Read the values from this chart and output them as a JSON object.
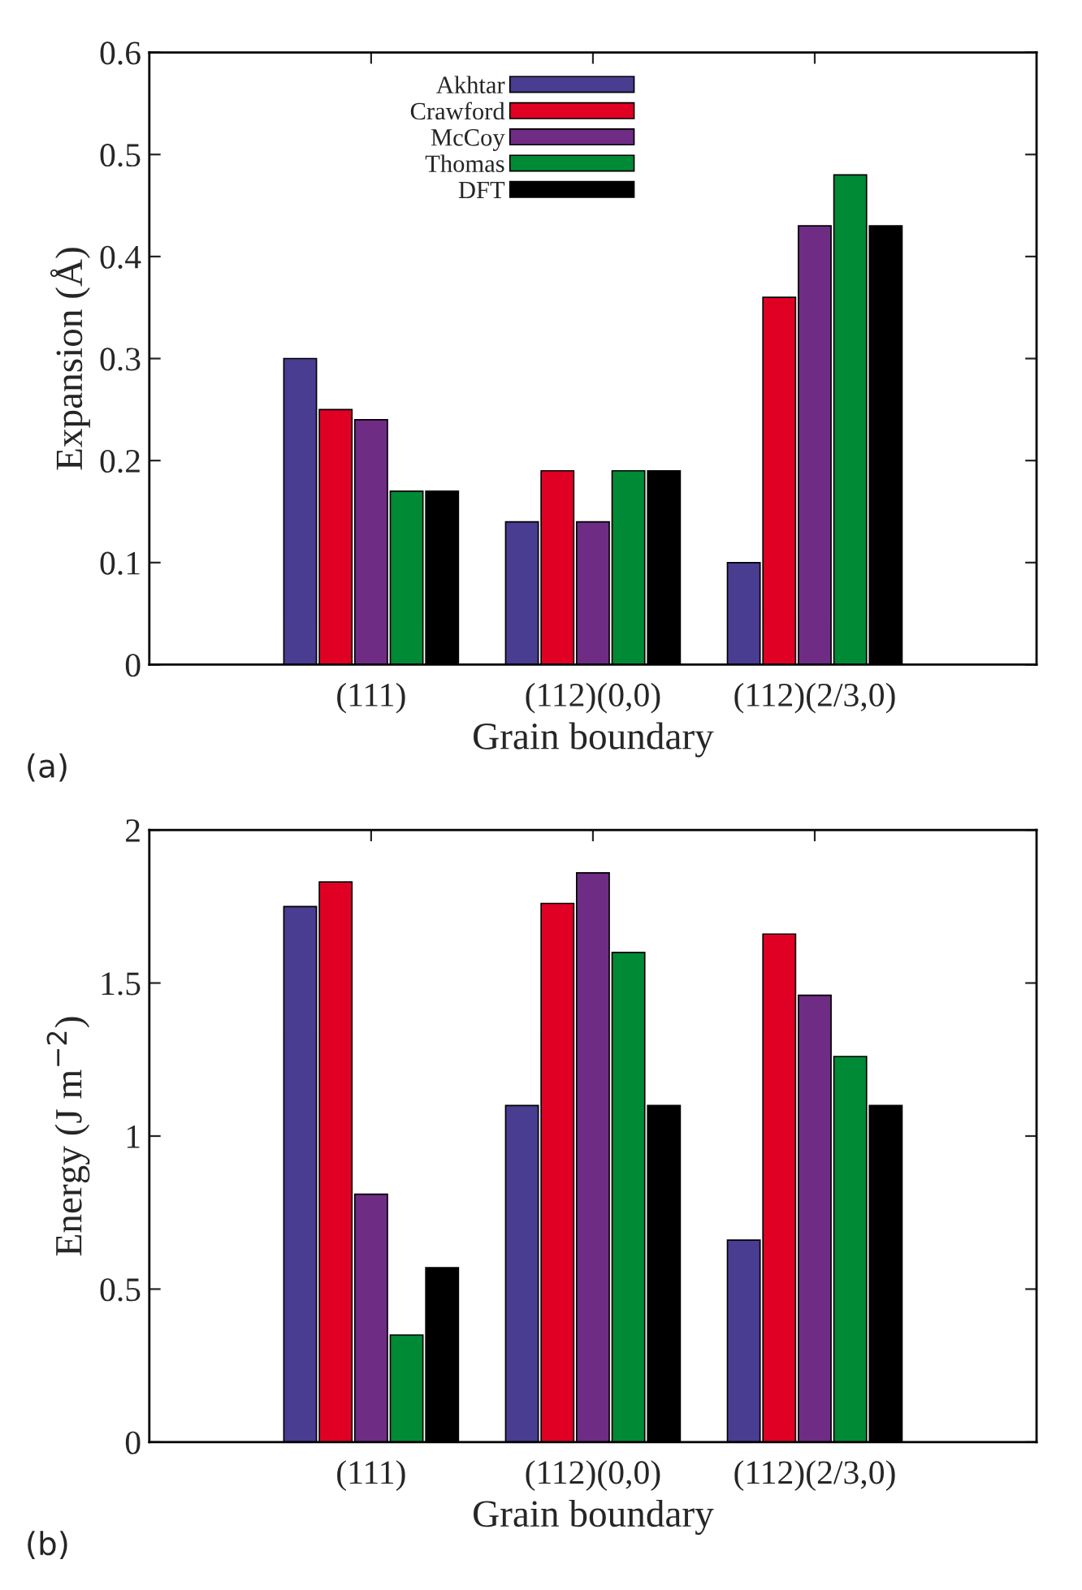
{
  "chart_data": [
    {
      "type": "bar",
      "xlabel": "Grain boundary",
      "ylabel": "Expansion (Å)",
      "categories": [
        "(111)",
        "(112)(0,0)",
        "(112)(2/3,0)"
      ],
      "series": [
        {
          "name": "Akhtar",
          "color": "#483d91",
          "values": [
            0.3,
            0.14,
            0.1
          ]
        },
        {
          "name": "Crawford",
          "color": "#e00024",
          "values": [
            0.25,
            0.19,
            0.36
          ]
        },
        {
          "name": "McCoy",
          "color": "#6f2c84",
          "values": [
            0.24,
            0.14,
            0.43
          ]
        },
        {
          "name": "Thomas",
          "color": "#008a36",
          "values": [
            0.17,
            0.19,
            0.48
          ]
        },
        {
          "name": "DFT",
          "color": "#000000",
          "values": [
            0.17,
            0.19,
            0.43
          ]
        }
      ],
      "ylim": [
        0,
        0.6
      ],
      "yticks": [
        {
          "value": 0,
          "label": "0"
        },
        0.1,
        0.2,
        0.3,
        0.4,
        0.5,
        0.6
      ],
      "legend": "top",
      "grid": false,
      "annotations": [
        "(a)"
      ]
    },
    {
      "type": "bar",
      "xlabel": "Grain boundary",
      "ylabel": "Energy (J m$^{−2}$)",
      "categories": [
        "(111)",
        "(112)(0,0)",
        "(112)(2/3,0)"
      ],
      "series": [
        {
          "color": "#483d91",
          "values": [
            1.75,
            1.1,
            0.66
          ]
        },
        {
          "color": "#e00024",
          "values": [
            1.83,
            1.76,
            1.66
          ]
        },
        {
          "color": "#6f2c84",
          "values": [
            0.81,
            1.86,
            1.46
          ]
        },
        {
          "color": "#008a36",
          "values": [
            0.35,
            1.6,
            1.26
          ]
        },
        {
          "color": "#000000",
          "values": [
            0.57,
            1.1,
            1.1
          ]
        }
      ],
      "ylim": [
        0,
        2
      ],
      "yticks": [
        0,
        0.5,
        1,
        1.5,
        2
      ],
      "legend": false,
      "grid": false,
      "annotations": [
        "(b)"
      ]
    }
  ]
}
